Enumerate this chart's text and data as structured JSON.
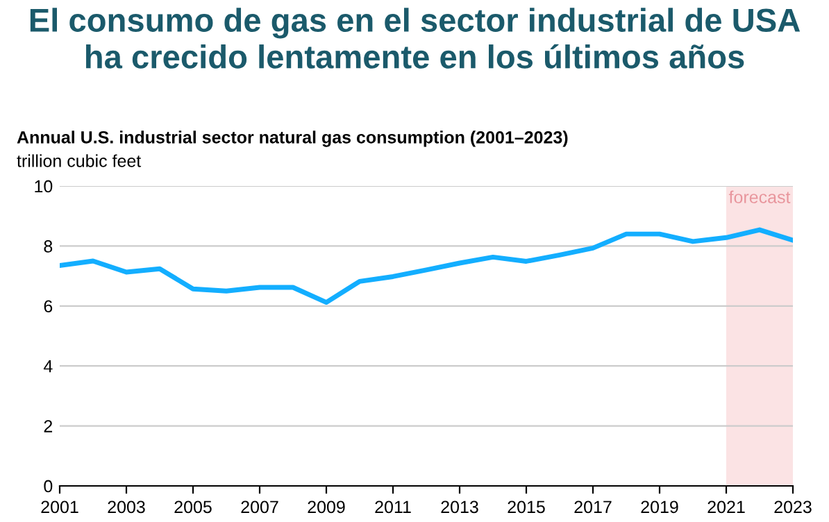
{
  "chart_data": {
    "type": "line",
    "title": "El consumo de gas en el sector industrial de USA\nha crecido lentamente en los últimos años",
    "subtitle": "Annual U.S. industrial sector natural gas consumption (2001–2023)",
    "ylabel": "trillion cubic feet",
    "x": [
      2001,
      2002,
      2003,
      2004,
      2005,
      2006,
      2007,
      2008,
      2009,
      2010,
      2011,
      2012,
      2013,
      2014,
      2015,
      2016,
      2017,
      2018,
      2019,
      2020,
      2021,
      2022,
      2023
    ],
    "series": [
      {
        "color": "#13aeff",
        "values": [
          7.35,
          7.5,
          7.13,
          7.24,
          6.57,
          6.5,
          6.62,
          6.62,
          6.12,
          6.82,
          6.98,
          7.2,
          7.43,
          7.63,
          7.49,
          7.7,
          7.93,
          8.4,
          8.4,
          8.15,
          8.28,
          8.54,
          8.19
        ]
      }
    ],
    "xlim": [
      2001,
      2023
    ],
    "xticks": [
      2001,
      2003,
      2005,
      2007,
      2009,
      2011,
      2013,
      2015,
      2017,
      2019,
      2021,
      2023
    ],
    "ylim": [
      0,
      10
    ],
    "yticks": [
      0,
      2,
      4,
      6,
      8,
      10
    ],
    "grid": "y",
    "marker": "none",
    "line_style": "solid",
    "bands": [
      {
        "axis": "x",
        "from": 2021,
        "to": 2023,
        "label": "forecast",
        "color": "#fbe3e4"
      }
    ]
  }
}
